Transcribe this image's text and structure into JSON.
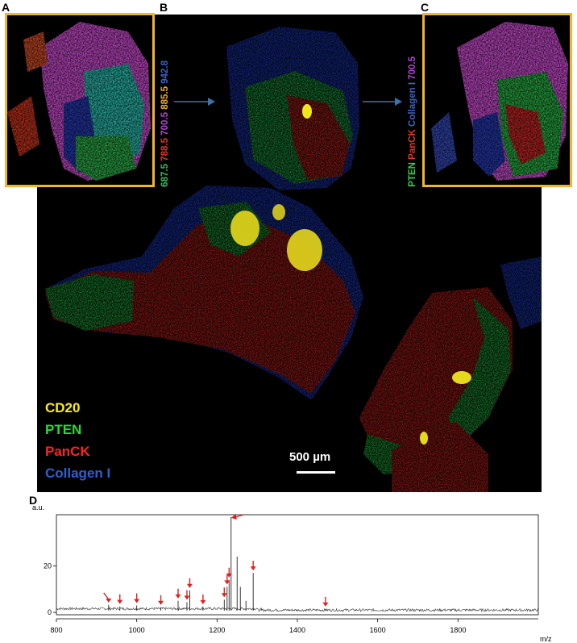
{
  "panels": {
    "a": {
      "letter": "A"
    },
    "b": {
      "letter": "B"
    },
    "c": {
      "letter": "C"
    },
    "d": {
      "letter": "D"
    }
  },
  "mass_channels": [
    {
      "text": "687.5",
      "color": "#34c060"
    },
    {
      "text": "788.5",
      "color": "#e8342a"
    },
    {
      "text": "700.5",
      "color": "#b446d8"
    },
    {
      "text": "885.5",
      "color": "#f0b030"
    },
    {
      "text": "942.8",
      "color": "#3b63c8"
    }
  ],
  "inset_c_labels": [
    {
      "text": "PTEN",
      "color": "#2ed640"
    },
    {
      "text": "PanCK",
      "color": "#e8342a"
    },
    {
      "text": "Collagen I",
      "color": "#3b63c8"
    },
    {
      "text": "700.5",
      "color": "#b446d8"
    }
  ],
  "legend": [
    {
      "text": "CD20",
      "color": "#ffee00"
    },
    {
      "text": "PTEN",
      "color": "#22e033"
    },
    {
      "text": "PanCK",
      "color": "#ff2222"
    },
    {
      "text": "Collagen I",
      "color": "#2f5fd0"
    }
  ],
  "scale_bar": {
    "text": "500 µm"
  },
  "chart_data": {
    "type": "line",
    "ylabel": "a.u.",
    "xlabel": "m/z",
    "xlim": [
      800,
      2000
    ],
    "ylim": [
      -1,
      42
    ],
    "x_ticks": [
      800,
      1000,
      1200,
      1400,
      1600,
      1800
    ],
    "y_ticks": [
      0,
      20
    ],
    "peaks": [
      {
        "x": 930,
        "y": 3.2
      },
      {
        "x": 958,
        "y": 2.6
      },
      {
        "x": 1000,
        "y": 3.0
      },
      {
        "x": 1060,
        "y": 2.2
      },
      {
        "x": 1103,
        "y": 5.0
      },
      {
        "x": 1125,
        "y": 4.4
      },
      {
        "x": 1132,
        "y": 9.5
      },
      {
        "x": 1165,
        "y": 2.5
      },
      {
        "x": 1218,
        "y": 5.5
      },
      {
        "x": 1225,
        "y": 11.0
      },
      {
        "x": 1230,
        "y": 14.0
      },
      {
        "x": 1235,
        "y": 41.0
      },
      {
        "x": 1250,
        "y": 24.0
      },
      {
        "x": 1258,
        "y": 11.0
      },
      {
        "x": 1272,
        "y": 5.0
      },
      {
        "x": 1290,
        "y": 17.0
      },
      {
        "x": 1310,
        "y": 2.0
      },
      {
        "x": 1470,
        "y": 1.5
      }
    ],
    "arrows_at": [
      930,
      958,
      1000,
      1060,
      1103,
      1125,
      1132,
      1165,
      1218,
      1225,
      1230,
      1235,
      1290,
      1470
    ],
    "arrow_color": "#e02020"
  }
}
